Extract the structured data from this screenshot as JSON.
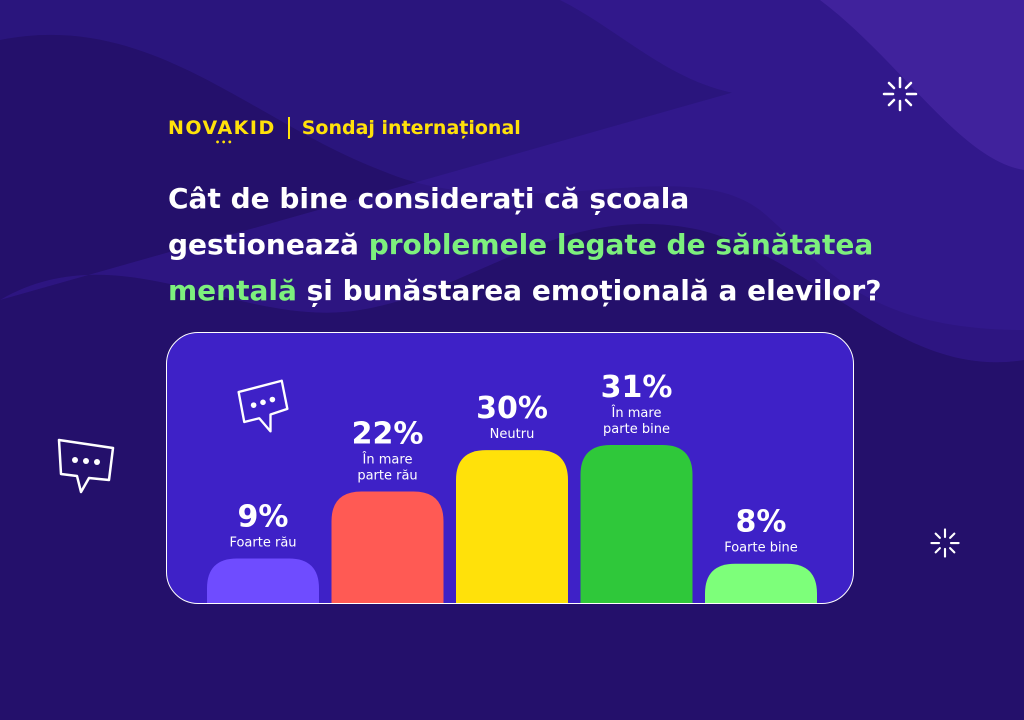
{
  "header": {
    "logo": "NOVAKID",
    "subtitle": "Sondaj internațional"
  },
  "title": {
    "part1": "Cât de bine considerați că școala gestionează ",
    "highlight": "problemele legate de sănătatea mentală",
    "part2": " și bunăstarea emoțională a elevilor?"
  },
  "colors": {
    "background": "#24106b",
    "panel": "#3e21c7",
    "highlight": "#7df07d",
    "brand_yellow": "#ffe10a"
  },
  "chart_data": {
    "type": "bar",
    "title": "",
    "xlabel": "",
    "ylabel": "",
    "ylim": [
      0,
      31
    ],
    "grid": false,
    "categories": [
      "Foarte rău",
      "În mare parte rău",
      "Neutru",
      "În mare parte bine",
      "Foarte bine"
    ],
    "values": [
      9,
      22,
      30,
      31,
      8
    ],
    "value_labels": [
      "9%",
      "22%",
      "30%",
      "31%",
      "8%"
    ],
    "category_lines": [
      [
        "Foarte rău"
      ],
      [
        "În mare",
        "parte rău"
      ],
      [
        "Neutru"
      ],
      [
        "În mare",
        "parte bine"
      ],
      [
        "Foarte bine"
      ]
    ],
    "colors": [
      "#6f4cff",
      "#ff5a54",
      "#ffe10a",
      "#2fc83a",
      "#7dff7a"
    ]
  },
  "decorations": {
    "icons": [
      "chat-bubble-icon",
      "chat-bubble-icon",
      "sparkle-icon",
      "sparkle-icon"
    ]
  }
}
